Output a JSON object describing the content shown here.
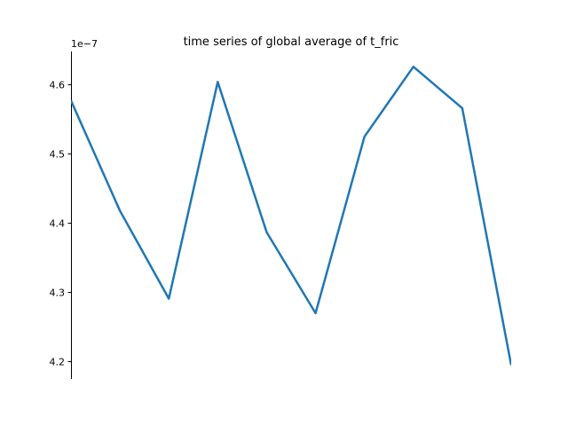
{
  "chart_data": {
    "type": "line",
    "title": "time series of global average of t_fric",
    "xlabel": "",
    "ylabel": "",
    "y_offset_label": "1e−7",
    "x": [
      0,
      1,
      2,
      3,
      4,
      5,
      6,
      7,
      8,
      9
    ],
    "series": [
      {
        "values": [
          4.577,
          4.418,
          4.291,
          4.604,
          4.387,
          4.27,
          4.525,
          4.626,
          4.566,
          4.195
        ]
      }
    ],
    "xlim": [
      0,
      9
    ],
    "ylim": [
      4.175,
      4.648
    ],
    "yticks": [
      4.2,
      4.3,
      4.4,
      4.5,
      4.6
    ],
    "ytick_labels": [
      "4.2",
      "4.3",
      "4.4",
      "4.5",
      "4.6"
    ],
    "grid": false,
    "line_color": "#1f77b4"
  }
}
